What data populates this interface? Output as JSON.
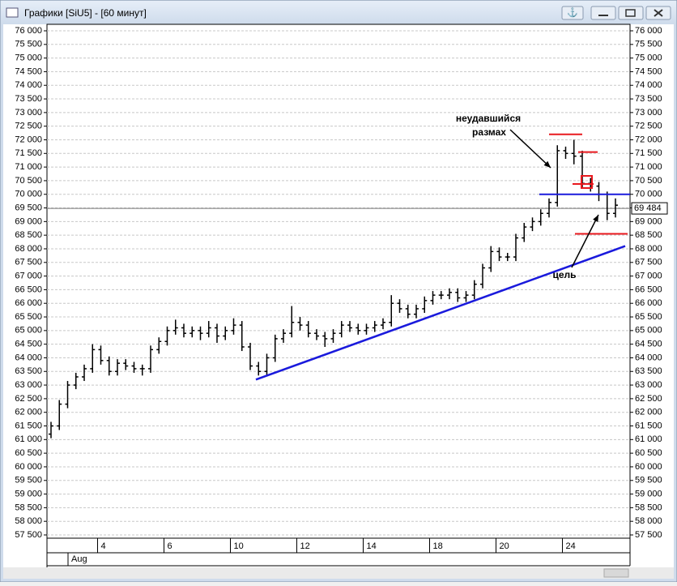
{
  "window": {
    "title": "Графики [SiU5] - [60 минут]"
  },
  "chart_data": {
    "type": "ohlc",
    "categories": [
      null,
      null,
      null,
      null,
      null,
      null,
      "4",
      null,
      null,
      null,
      null,
      null,
      null,
      null,
      "6",
      null,
      null,
      null,
      null,
      null,
      null,
      null,
      "10",
      null,
      null,
      null,
      null,
      null,
      null,
      null,
      "12",
      null,
      null,
      null,
      null,
      null,
      null,
      null,
      "14",
      null,
      null,
      null,
      null,
      null,
      null,
      null,
      "18",
      null,
      null,
      null,
      null,
      null,
      null,
      null,
      "20",
      null,
      null,
      null,
      null,
      null,
      null,
      null,
      "24",
      null,
      null,
      null,
      null,
      null,
      null
    ],
    "month_label": "Aug",
    "open": [
      61200,
      61500,
      62300,
      63000,
      63300,
      63600,
      64300,
      63900,
      63500,
      63800,
      63700,
      63600,
      63600,
      64300,
      64600,
      65000,
      65100,
      64900,
      65000,
      64900,
      65100,
      64800,
      65000,
      65200,
      64400,
      63700,
      63500,
      64000,
      64700,
      64900,
      65300,
      65200,
      64900,
      64800,
      64700,
      64900,
      65200,
      65100,
      65000,
      65100,
      65200,
      65300,
      66000,
      65800,
      65600,
      65800,
      66100,
      66300,
      66300,
      66400,
      66200,
      66300,
      66700,
      67300,
      67900,
      67700,
      67700,
      68400,
      68800,
      69000,
      69300,
      69700,
      71600,
      71500,
      71400,
      70400,
      70300,
      70000,
      69300
    ],
    "high": [
      61650,
      62450,
      63150,
      63450,
      63750,
      64500,
      64450,
      64050,
      63950,
      63950,
      63850,
      63750,
      64450,
      64750,
      65150,
      65400,
      65250,
      65150,
      65150,
      65350,
      65250,
      65150,
      65450,
      65350,
      64550,
      63850,
      64150,
      64850,
      65050,
      65900,
      65500,
      65350,
      65050,
      64950,
      65050,
      65350,
      65350,
      65250,
      65250,
      65350,
      65450,
      66300,
      66150,
      65950,
      65950,
      66250,
      66450,
      66450,
      66550,
      66550,
      66450,
      66850,
      67450,
      68100,
      68050,
      67850,
      68550,
      68950,
      69150,
      69450,
      69850,
      71800,
      71750,
      72000,
      71600,
      70600,
      70450,
      70100,
      69850
    ],
    "low": [
      61050,
      61350,
      62150,
      62850,
      63150,
      63450,
      63750,
      63350,
      63350,
      63550,
      63450,
      63350,
      63450,
      64150,
      64450,
      64850,
      64750,
      64750,
      64650,
      64750,
      64550,
      64650,
      64850,
      64250,
      63550,
      63350,
      63350,
      63850,
      64550,
      64750,
      65000,
      64750,
      64650,
      64400,
      64550,
      64750,
      64950,
      64850,
      64850,
      64950,
      65050,
      65150,
      65650,
      65450,
      65450,
      65650,
      65950,
      66150,
      66150,
      66050,
      66050,
      66150,
      66550,
      67150,
      67550,
      67550,
      67550,
      68250,
      68650,
      68850,
      69150,
      69550,
      71300,
      71100,
      70250,
      70100,
      69750,
      69050,
      69150
    ],
    "close": [
      61500,
      62300,
      63000,
      63300,
      63600,
      64300,
      63900,
      63500,
      63800,
      63700,
      63600,
      63600,
      64300,
      64600,
      65000,
      65100,
      64900,
      65000,
      64900,
      65100,
      64800,
      65000,
      65200,
      64400,
      63700,
      63500,
      64000,
      64700,
      64900,
      65300,
      65200,
      64900,
      64800,
      64700,
      64900,
      65200,
      65100,
      65000,
      65100,
      65200,
      65300,
      66000,
      65800,
      65600,
      65800,
      66100,
      66300,
      66300,
      66400,
      66200,
      66300,
      66700,
      67300,
      67900,
      67700,
      67700,
      68400,
      68800,
      69000,
      69300,
      69700,
      71600,
      71500,
      71400,
      70400,
      70300,
      70000,
      69300,
      69600
    ],
    "color": "#000000",
    "ylim": [
      57500,
      76000
    ],
    "yticks": [
      {
        "value": 76000,
        "label": "76 000"
      },
      {
        "value": 75500,
        "label": "75 500"
      },
      {
        "value": 75000,
        "label": "75 000"
      },
      {
        "value": 74500,
        "label": "74 500"
      },
      {
        "value": 74000,
        "label": "74 000"
      },
      {
        "value": 73500,
        "label": "73 500"
      },
      {
        "value": 73000,
        "label": "73 000"
      },
      {
        "value": 72500,
        "label": "72 500"
      },
      {
        "value": 72000,
        "label": "72 000"
      },
      {
        "value": 71500,
        "label": "71 500"
      },
      {
        "value": 71000,
        "label": "71 000"
      },
      {
        "value": 70500,
        "label": "70 500"
      },
      {
        "value": 70000,
        "label": "70 000"
      },
      {
        "value": 69500,
        "label": "69 500"
      },
      {
        "value": 69000,
        "label": "69 000"
      },
      {
        "value": 68500,
        "label": "68 500"
      },
      {
        "value": 68000,
        "label": "68 000"
      },
      {
        "value": 67500,
        "label": "67 500"
      },
      {
        "value": 67000,
        "label": "67 000"
      },
      {
        "value": 66500,
        "label": "66 500"
      },
      {
        "value": 66000,
        "label": "66 000"
      },
      {
        "value": 65500,
        "label": "65 500"
      },
      {
        "value": 65000,
        "label": "65 000"
      },
      {
        "value": 64500,
        "label": "64 500"
      },
      {
        "value": 64000,
        "label": "64 000"
      },
      {
        "value": 63500,
        "label": "63 500"
      },
      {
        "value": 63000,
        "label": "63 000"
      },
      {
        "value": 62500,
        "label": "62 500"
      },
      {
        "value": 62000,
        "label": "62 000"
      },
      {
        "value": 61500,
        "label": "61 500"
      },
      {
        "value": 61000,
        "label": "61 000"
      },
      {
        "value": 60500,
        "label": "60 500"
      },
      {
        "value": 60000,
        "label": "60 000"
      },
      {
        "value": 59500,
        "label": "59 500"
      },
      {
        "value": 59000,
        "label": "59 000"
      },
      {
        "value": 58500,
        "label": "58 500"
      },
      {
        "value": 58000,
        "label": "58 000"
      },
      {
        "value": 57500,
        "label": "57 500"
      }
    ],
    "grid": true,
    "last_price": {
      "value": 69484,
      "label": "69 484"
    },
    "trendline": {
      "color": "#1a1adc",
      "values": [
        63200,
        68100
      ]
    },
    "levels": [
      {
        "value": 70000,
        "color": "#1a1adc"
      },
      {
        "value": 72200,
        "color": "#e8191e"
      },
      {
        "value": 71550,
        "color": "#e8191e"
      },
      {
        "value": 68550,
        "color": "#e8191e"
      }
    ],
    "annotations": [
      "неудавшийся",
      "размах",
      "цель"
    ]
  }
}
